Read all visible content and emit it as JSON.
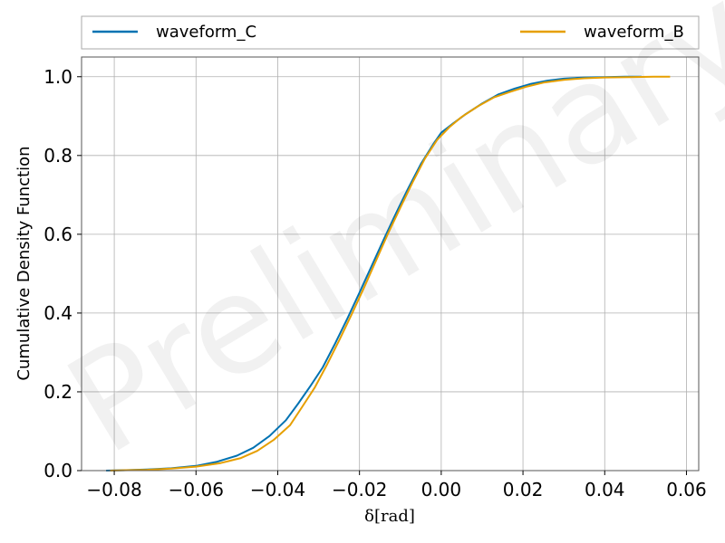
{
  "chart_data": {
    "type": "line",
    "title": "",
    "xlabel": "δ[rad]",
    "ylabel": "Cumulative Density Function",
    "xlim": [
      -0.088,
      0.063
    ],
    "ylim": [
      0.0,
      1.05
    ],
    "x_ticks": [
      -0.08,
      -0.06,
      -0.04,
      -0.02,
      0.0,
      0.02,
      0.04,
      0.06
    ],
    "x_tick_labels": [
      "−0.08",
      "−0.06",
      "−0.04",
      "−0.02",
      "0.00",
      "0.02",
      "0.04",
      "0.06"
    ],
    "y_ticks": [
      0.0,
      0.2,
      0.4,
      0.6,
      0.8,
      1.0
    ],
    "y_tick_labels": [
      "0.0",
      "0.2",
      "0.4",
      "0.6",
      "0.8",
      "1.0"
    ],
    "grid": true,
    "legend_position": "top, above plot",
    "watermark": "Preliminary",
    "series": [
      {
        "name": "waveform_C",
        "color": "#0072b2",
        "x": [
          -0.082,
          -0.078,
          -0.072,
          -0.066,
          -0.06,
          -0.055,
          -0.05,
          -0.046,
          -0.042,
          -0.038,
          -0.035,
          -0.032,
          -0.029,
          -0.026,
          -0.023,
          -0.02,
          -0.017,
          -0.014,
          -0.011,
          -0.008,
          -0.005,
          -0.002,
          0.0,
          0.003,
          0.006,
          0.01,
          0.014,
          0.018,
          0.022,
          0.026,
          0.03,
          0.035,
          0.04,
          0.045,
          0.049
        ],
        "y": [
          0.0,
          0.001,
          0.003,
          0.006,
          0.012,
          0.022,
          0.038,
          0.058,
          0.088,
          0.128,
          0.17,
          0.215,
          0.262,
          0.322,
          0.385,
          0.452,
          0.52,
          0.588,
          0.655,
          0.718,
          0.778,
          0.828,
          0.858,
          0.882,
          0.905,
          0.932,
          0.955,
          0.97,
          0.982,
          0.99,
          0.995,
          0.998,
          0.999,
          1.0,
          1.0
        ]
      },
      {
        "name": "waveform_B",
        "color": "#e69f00",
        "x": [
          -0.081,
          -0.078,
          -0.072,
          -0.066,
          -0.06,
          -0.054,
          -0.049,
          -0.045,
          -0.041,
          -0.037,
          -0.034,
          -0.031,
          -0.028,
          -0.025,
          -0.022,
          -0.019,
          -0.016,
          -0.013,
          -0.01,
          -0.007,
          -0.004,
          -0.001,
          0.002,
          0.005,
          0.009,
          0.013,
          0.017,
          0.021,
          0.025,
          0.03,
          0.035,
          0.04,
          0.046,
          0.052,
          0.056
        ],
        "y": [
          0.0,
          0.001,
          0.002,
          0.005,
          0.01,
          0.019,
          0.032,
          0.05,
          0.078,
          0.115,
          0.162,
          0.21,
          0.268,
          0.33,
          0.395,
          0.462,
          0.532,
          0.602,
          0.668,
          0.732,
          0.792,
          0.84,
          0.872,
          0.898,
          0.925,
          0.948,
          0.962,
          0.975,
          0.985,
          0.992,
          0.996,
          0.998,
          0.999,
          1.0,
          1.0
        ]
      }
    ]
  }
}
